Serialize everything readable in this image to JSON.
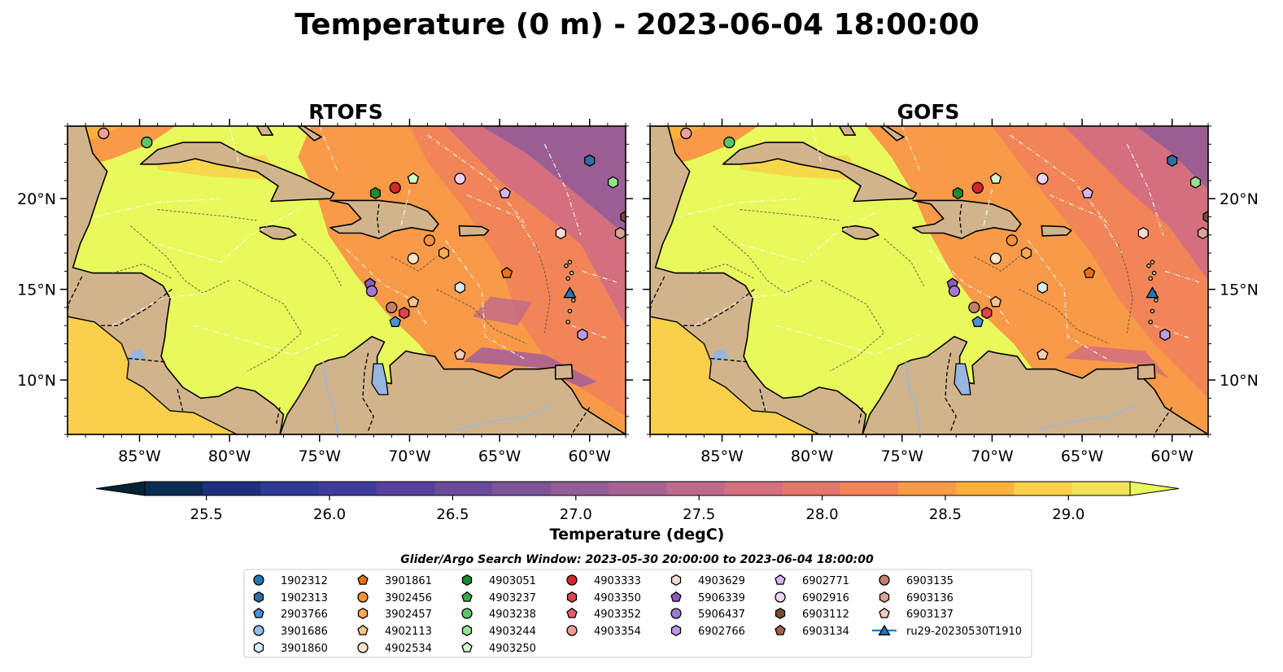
{
  "title": "Temperature (0 m) - 2023-06-04 18:00:00",
  "panels": [
    {
      "title": "RTOFS",
      "variant": "rtofs"
    },
    {
      "title": "GOFS",
      "variant": "gofs"
    }
  ],
  "map_extent": {
    "lon_min": -89,
    "lon_max": -58,
    "lat_min": 7,
    "lat_max": 24
  },
  "lon_ticks": [
    {
      "lon": -85,
      "label": "85°W"
    },
    {
      "lon": -80,
      "label": "80°W"
    },
    {
      "lon": -75,
      "label": "75°W"
    },
    {
      "lon": -70,
      "label": "70°W"
    },
    {
      "lon": -65,
      "label": "65°W"
    },
    {
      "lon": -60,
      "label": "60°W"
    }
  ],
  "lat_ticks": [
    {
      "lat": 20,
      "label": "20°N"
    },
    {
      "lat": 15,
      "label": "15°N"
    },
    {
      "lat": 10,
      "label": "10°N"
    }
  ],
  "colorbar": {
    "label": "Temperature (degC)",
    "min": 25.25,
    "max": 29.25,
    "step": 0.25,
    "ticks": [
      {
        "value": 25.5,
        "label": "25.5"
      },
      {
        "value": 26.0,
        "label": "26.0"
      },
      {
        "value": 26.5,
        "label": "26.5"
      },
      {
        "value": 27.0,
        "label": "27.0"
      },
      {
        "value": 27.5,
        "label": "27.5"
      },
      {
        "value": 28.0,
        "label": "28.0"
      },
      {
        "value": 28.5,
        "label": "28.5"
      },
      {
        "value": 29.0,
        "label": "29.0"
      }
    ],
    "colors": [
      "#042333",
      "#0d2a55",
      "#1e2f7e",
      "#2d3a96",
      "#3f3d9c",
      "#56409c",
      "#6a4a9a",
      "#7e5398",
      "#935c96",
      "#a86294",
      "#c0698b",
      "#d36f7e",
      "#e3776b",
      "#f18557",
      "#f89a47",
      "#fbb23c",
      "#fad04a",
      "#f2e35a",
      "#e8fa5b"
    ],
    "land_color": "#d2b48c"
  },
  "search_window": "Glider/Argo Search Window: 2023-05-30 20:00:00 to 2023-06-04 18:00:00",
  "legend_columns": [
    [
      {
        "id": "1902312",
        "marker": "circle",
        "color": "#1f77b4"
      },
      {
        "id": "1902313",
        "marker": "hexagon",
        "color": "#2f6fa8"
      },
      {
        "id": "2903766",
        "marker": "pentagon",
        "color": "#4a90d9"
      },
      {
        "id": "3901686",
        "marker": "circle",
        "color": "#8fbfe8"
      },
      {
        "id": "3901860",
        "marker": "hexagon",
        "color": "#d6ecfa"
      }
    ],
    [
      {
        "id": "3901861",
        "marker": "pentagon",
        "color": "#e8730c"
      },
      {
        "id": "3902456",
        "marker": "circle",
        "color": "#f5913a"
      },
      {
        "id": "3902457",
        "marker": "hexagon",
        "color": "#fbaa55"
      },
      {
        "id": "4902113",
        "marker": "pentagon",
        "color": "#fcc48f"
      },
      {
        "id": "4902534",
        "marker": "circle",
        "color": "#fde3c8"
      }
    ],
    [
      {
        "id": "4903051",
        "marker": "hexagon",
        "color": "#1e8a2a"
      },
      {
        "id": "4903237",
        "marker": "pentagon",
        "color": "#37a845"
      },
      {
        "id": "4903238",
        "marker": "circle",
        "color": "#5cc466"
      },
      {
        "id": "4903244",
        "marker": "hexagon",
        "color": "#98e38f"
      },
      {
        "id": "4903250",
        "marker": "pentagon",
        "color": "#d1f7cc"
      }
    ],
    [
      {
        "id": "4903333",
        "marker": "circle",
        "color": "#d62728"
      },
      {
        "id": "4903350",
        "marker": "hexagon",
        "color": "#e0414a"
      },
      {
        "id": "4903352",
        "marker": "pentagon",
        "color": "#ea6068"
      },
      {
        "id": "4903354",
        "marker": "circle",
        "color": "#f39a9b"
      }
    ],
    [
      {
        "id": "4903629",
        "marker": "hexagon",
        "color": "#fadbd7"
      },
      {
        "id": "5906339",
        "marker": "pentagon",
        "color": "#8a5bbf"
      },
      {
        "id": "5906437",
        "marker": "circle",
        "color": "#a078d4"
      },
      {
        "id": "6902766",
        "marker": "hexagon",
        "color": "#bb9be6"
      }
    ],
    [
      {
        "id": "6902771",
        "marker": "pentagon",
        "color": "#d3b8f2"
      },
      {
        "id": "6902916",
        "marker": "circle",
        "color": "#ecd4fb"
      },
      {
        "id": "6903112",
        "marker": "hexagon",
        "color": "#7b4a33"
      },
      {
        "id": "6903134",
        "marker": "pentagon",
        "color": "#9c6350"
      }
    ],
    [
      {
        "id": "6903135",
        "marker": "circle",
        "color": "#c4806b"
      },
      {
        "id": "6903136",
        "marker": "hexagon",
        "color": "#dba595"
      },
      {
        "id": "6903137",
        "marker": "pentagon",
        "color": "#f4cbbd"
      },
      {
        "id": "ru29-20230530T1910",
        "marker": "triangle-line",
        "color": "#1f77b4"
      }
    ]
  ],
  "platform_positions": [
    {
      "id": "1902313",
      "lon": -60.0,
      "lat": 22.1
    },
    {
      "id": "4903244",
      "lon": -58.7,
      "lat": 20.9
    },
    {
      "id": "6903112",
      "lon": -58.0,
      "lat": 19.0
    },
    {
      "id": "6903136",
      "lon": -58.3,
      "lat": 18.1
    },
    {
      "id": "4903629",
      "lon": -61.6,
      "lat": 18.1
    },
    {
      "id": "6902916",
      "lon": -67.2,
      "lat": 21.1
    },
    {
      "id": "4903250",
      "lon": -69.8,
      "lat": 21.1
    },
    {
      "id": "6902771",
      "lon": -64.7,
      "lat": 20.3
    },
    {
      "id": "4903051",
      "lon": -71.9,
      "lat": 20.3
    },
    {
      "id": "4903333",
      "lon": -70.8,
      "lat": 20.6
    },
    {
      "id": "4903238",
      "lon": -84.6,
      "lat": 23.1
    },
    {
      "id": "4903354",
      "lon": -87.0,
      "lat": 23.6
    },
    {
      "id": "3902456",
      "lon": -68.9,
      "lat": 17.7
    },
    {
      "id": "3902457",
      "lon": -68.1,
      "lat": 17.0
    },
    {
      "id": "4902534",
      "lon": -69.8,
      "lat": 16.7
    },
    {
      "id": "3901861",
      "lon": -64.6,
      "lat": 15.9
    },
    {
      "id": "3901860",
      "lon": -67.2,
      "lat": 15.1
    },
    {
      "id": "5906339",
      "lon": -72.2,
      "lat": 15.3
    },
    {
      "id": "5906437",
      "lon": -72.1,
      "lat": 14.9
    },
    {
      "id": "4902113",
      "lon": -69.8,
      "lat": 14.3
    },
    {
      "id": "6903135",
      "lon": -71.0,
      "lat": 14.0
    },
    {
      "id": "4903350",
      "lon": -70.3,
      "lat": 13.7
    },
    {
      "id": "2903766",
      "lon": -70.8,
      "lat": 13.2
    },
    {
      "id": "6903137",
      "lon": -67.2,
      "lat": 11.4
    },
    {
      "id": "6902766",
      "lon": -60.4,
      "lat": 12.5
    },
    {
      "id": "ru29-20230530T1910",
      "lon": -61.1,
      "lat": 14.8
    }
  ]
}
